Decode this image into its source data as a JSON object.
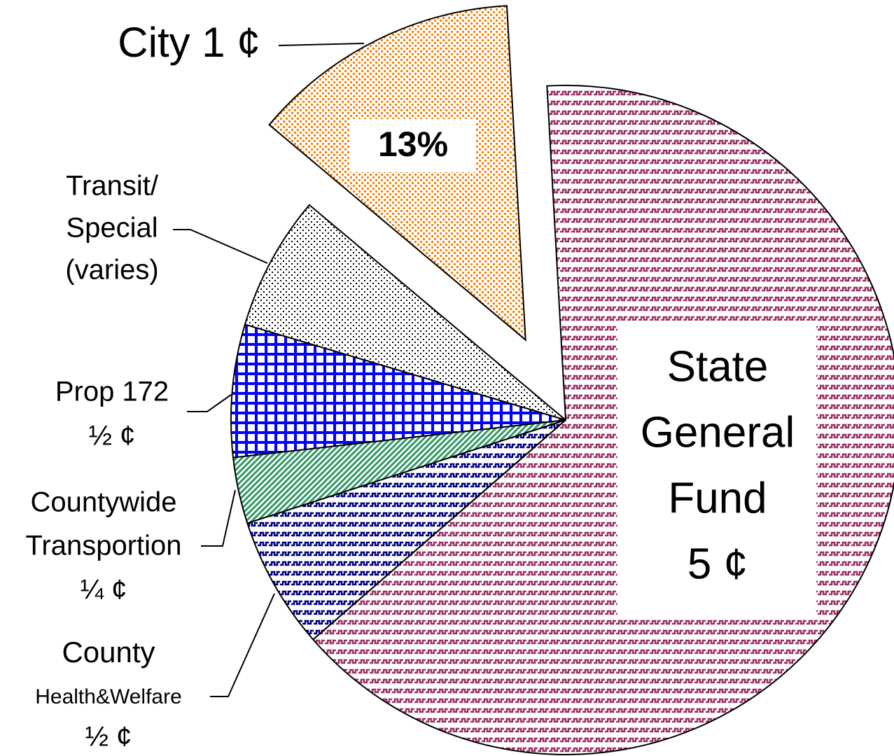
{
  "chart_data": {
    "type": "pie",
    "labels": [
      [
        "City 1 ¢"
      ],
      [
        "State",
        "General",
        "Fund",
        "5 ¢"
      ],
      [
        "County",
        "Health&Welfare",
        "½ ¢"
      ],
      [
        "Countywide",
        "Transportion",
        "¼ ¢"
      ],
      [
        "Prop 172",
        "½ ¢"
      ],
      [
        "Transit/",
        "Special",
        "(varies)"
      ]
    ],
    "values": [
      13,
      64.5,
      6.4,
      3.2,
      6.4,
      6.5
    ],
    "value_labels": [
      "13%",
      null,
      null,
      null,
      null,
      null
    ],
    "colors": [
      "#ff8000",
      "#993366",
      "#000080",
      "#339966",
      "#0000ff",
      "#000000"
    ],
    "explode": [
      true,
      false,
      false,
      false,
      false,
      false
    ]
  }
}
